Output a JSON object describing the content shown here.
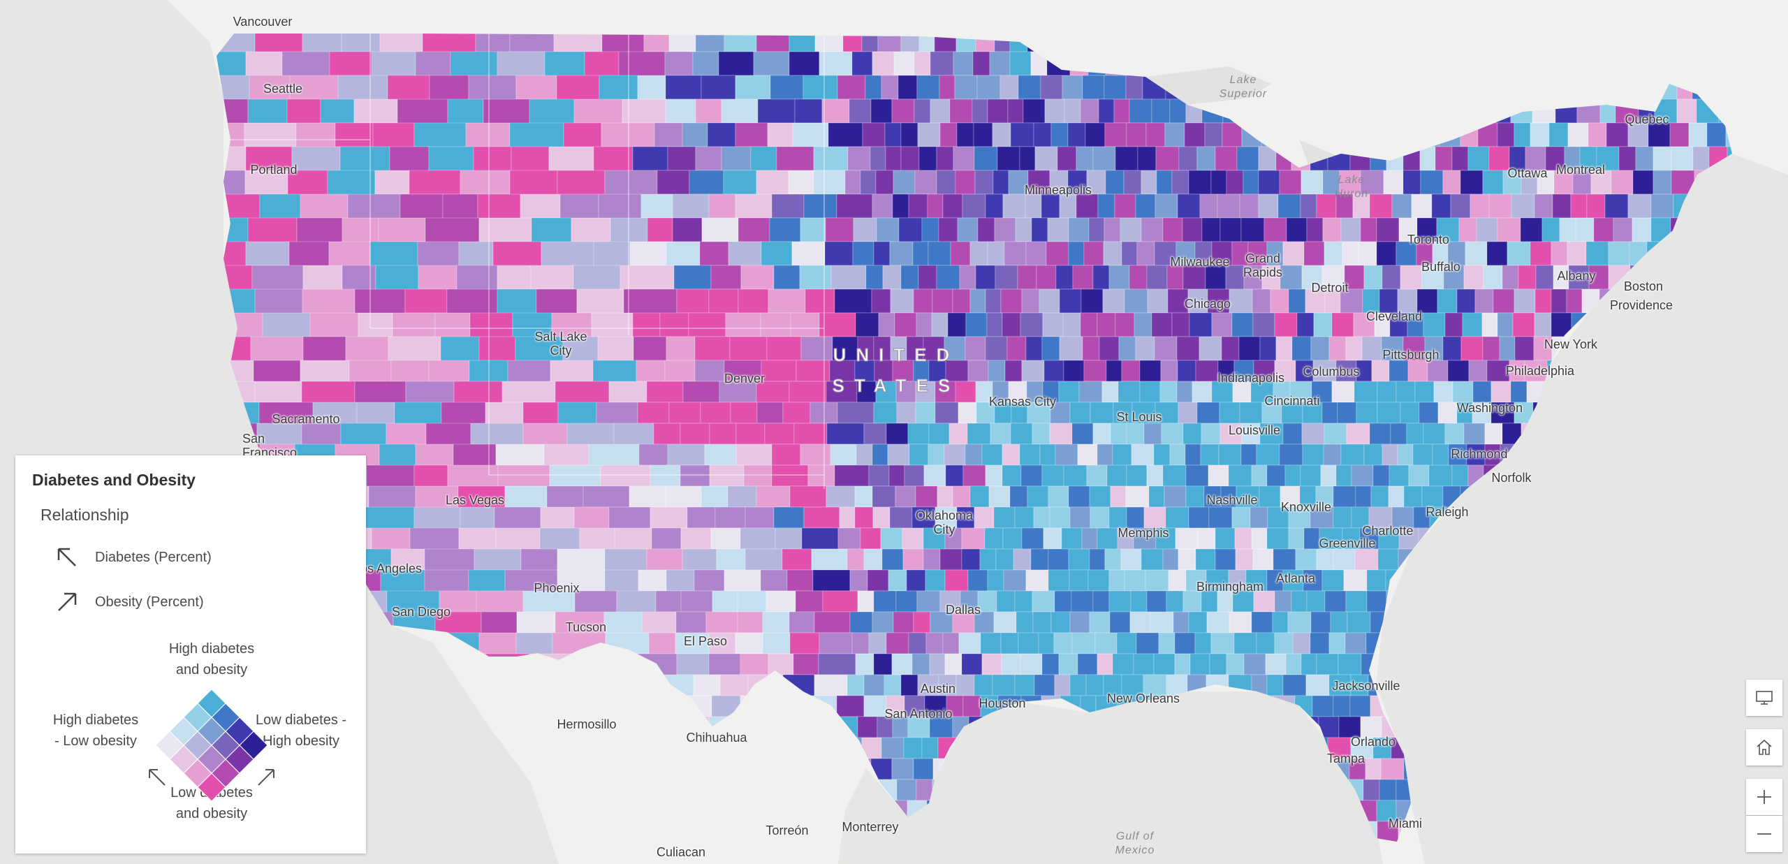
{
  "map": {
    "country_label_lines": [
      "UNITED",
      "STATES"
    ],
    "water_labels": [
      {
        "id": "lake-superior",
        "lines": [
          "Lake",
          "Superior"
        ]
      },
      {
        "id": "lake-huron",
        "lines": [
          "Lake",
          "Huron"
        ]
      },
      {
        "id": "gulf-of-mexico",
        "lines": [
          "Gulf of",
          "Mexico"
        ]
      }
    ],
    "cities": [
      {
        "id": "vancouver",
        "label": "Vancouver"
      },
      {
        "id": "seattle",
        "label": "Seattle"
      },
      {
        "id": "portland",
        "label": "Portland"
      },
      {
        "id": "sacramento",
        "label": "Sacramento"
      },
      {
        "id": "san-francisco",
        "label": "San Francisco"
      },
      {
        "id": "las-vegas",
        "label": "Las Vegas"
      },
      {
        "id": "los-angeles",
        "label": "Los Angeles"
      },
      {
        "id": "san-diego",
        "label": "San Diego"
      },
      {
        "id": "phoenix",
        "label": "Phoenix"
      },
      {
        "id": "tucson",
        "label": "Tucson"
      },
      {
        "id": "salt-lake-city",
        "label": "Salt Lake City"
      },
      {
        "id": "denver",
        "label": "Denver"
      },
      {
        "id": "el-paso",
        "label": "El Paso"
      },
      {
        "id": "hermosillo",
        "label": "Hermosillo"
      },
      {
        "id": "chihuahua",
        "label": "Chihuahua"
      },
      {
        "id": "culiacan",
        "label": "Culiacan"
      },
      {
        "id": "torreon",
        "label": "Torreón"
      },
      {
        "id": "monterrey",
        "label": "Monterrey"
      },
      {
        "id": "minneapolis",
        "label": "Minneapolis"
      },
      {
        "id": "milwaukee",
        "label": "Milwaukee"
      },
      {
        "id": "chicago",
        "label": "Chicago"
      },
      {
        "id": "grand-rapids",
        "label": "Grand Rapids"
      },
      {
        "id": "detroit",
        "label": "Detroit"
      },
      {
        "id": "kansas-city",
        "label": "Kansas City"
      },
      {
        "id": "st-louis",
        "label": "St Louis"
      },
      {
        "id": "indianapolis",
        "label": "Indianapolis"
      },
      {
        "id": "columbus",
        "label": "Columbus"
      },
      {
        "id": "cincinnati",
        "label": "Cincinnati"
      },
      {
        "id": "louisville",
        "label": "Louisville"
      },
      {
        "id": "oklahoma-city",
        "label": "Oklahoma City"
      },
      {
        "id": "memphis",
        "label": "Memphis"
      },
      {
        "id": "nashville",
        "label": "Nashville"
      },
      {
        "id": "knoxville",
        "label": "Knoxville"
      },
      {
        "id": "dallas",
        "label": "Dallas"
      },
      {
        "id": "austin",
        "label": "Austin"
      },
      {
        "id": "san-antonio",
        "label": "San Antonio"
      },
      {
        "id": "houston",
        "label": "Houston"
      },
      {
        "id": "new-orleans",
        "label": "New Orleans"
      },
      {
        "id": "birmingham",
        "label": "Birmingham"
      },
      {
        "id": "atlanta",
        "label": "Atlanta"
      },
      {
        "id": "greenville",
        "label": "Greenville"
      },
      {
        "id": "charlotte",
        "label": "Charlotte"
      },
      {
        "id": "raleigh",
        "label": "Raleigh"
      },
      {
        "id": "jacksonville",
        "label": "Jacksonville"
      },
      {
        "id": "orlando",
        "label": "Orlando"
      },
      {
        "id": "tampa",
        "label": "Tampa"
      },
      {
        "id": "miami",
        "label": "Miami"
      },
      {
        "id": "cleveland",
        "label": "Cleveland"
      },
      {
        "id": "pittsburgh",
        "label": "Pittsburgh"
      },
      {
        "id": "toronto",
        "label": "Toronto"
      },
      {
        "id": "buffalo",
        "label": "Buffalo"
      },
      {
        "id": "ottawa",
        "label": "Ottawa"
      },
      {
        "id": "montreal",
        "label": "Montreal"
      },
      {
        "id": "quebec",
        "label": "Quebec"
      },
      {
        "id": "albany",
        "label": "Albany"
      },
      {
        "id": "boston",
        "label": "Boston"
      },
      {
        "id": "providence",
        "label": "Providence"
      },
      {
        "id": "new-york",
        "label": "New York"
      },
      {
        "id": "philadelphia",
        "label": "Philadelphia"
      },
      {
        "id": "washington",
        "label": "Washington"
      },
      {
        "id": "richmond",
        "label": "Richmond"
      },
      {
        "id": "norfolk",
        "label": "Norfolk"
      }
    ]
  },
  "legend": {
    "title": "Diabetes and Obesity",
    "subtitle": "Relationship",
    "diabetes_axis": "Diabetes (Percent)",
    "obesity_axis": "Obesity (Percent)",
    "top": [
      "High diabetes",
      "and obesity"
    ],
    "left": [
      "High diabetes",
      "- Low obesity"
    ],
    "right": [
      "Low diabetes -",
      "High obesity"
    ],
    "bottom": [
      "Low diabetes",
      "and obesity"
    ]
  },
  "colors": {
    "ocean": "#e8e8e6",
    "land_other": "#f3f3f1",
    "legend_bivariate_grid": [
      [
        "#e9e6f2",
        "#c5dff0",
        "#93cfe6",
        "#4aaed6"
      ],
      [
        "#e8c6e3",
        "#b4b6de",
        "#7b9fd2",
        "#3f78c6"
      ],
      [
        "#e59fd3",
        "#b084cc",
        "#7a63bd",
        "#3f3ab0"
      ],
      [
        "#e24fac",
        "#b44bb0",
        "#7a35a6",
        "#2d1f96"
      ]
    ]
  },
  "widgets": {
    "fullscreen": "fullscreen-icon",
    "home": "home-icon",
    "zoom_in": "plus-icon",
    "zoom_out": "minus-icon"
  }
}
